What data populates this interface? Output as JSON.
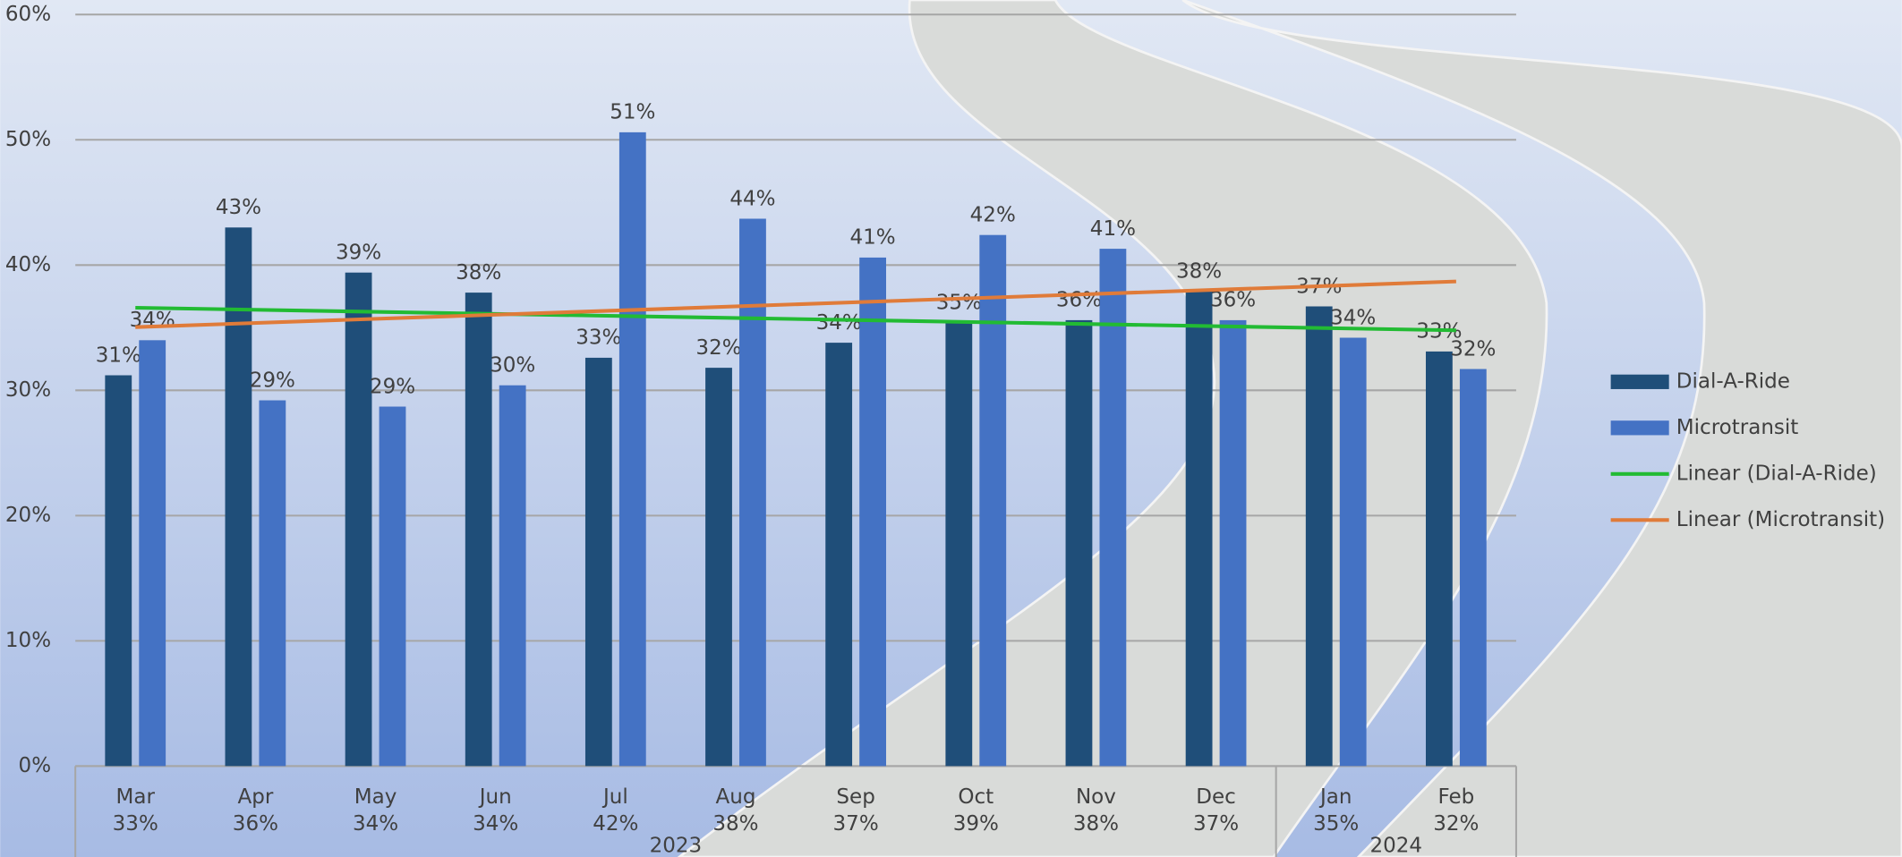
{
  "chart_data": {
    "type": "bar",
    "categories": [
      "Mar",
      "Apr",
      "May",
      "Jun",
      "Jul",
      "Aug",
      "Sep",
      "Oct",
      "Nov",
      "Dec",
      "Jan",
      "Feb"
    ],
    "category_sublabels": [
      "33%",
      "36%",
      "34%",
      "34%",
      "42%",
      "38%",
      "37%",
      "39%",
      "38%",
      "37%",
      "35%",
      "32%"
    ],
    "groups": [
      {
        "label": "2023",
        "span": 10
      },
      {
        "label": "2024",
        "span": 2
      }
    ],
    "series": [
      {
        "name": "Dial-A-Ride",
        "color": "#1f4e79",
        "values": [
          31.2,
          43.0,
          39.4,
          37.8,
          32.6,
          31.8,
          33.8,
          35.4,
          35.6,
          37.9,
          36.7,
          33.1
        ],
        "value_labels": [
          "31%",
          "43%",
          "39%",
          "38%",
          "33%",
          "32%",
          "34%",
          "35%",
          "36%",
          "38%",
          "37%",
          "33%"
        ],
        "trendline": {
          "name": "Linear (Dial-A-Ride)",
          "color": "#22bb33"
        }
      },
      {
        "name": "Microtransit",
        "color": "#4472c4",
        "values": [
          34.0,
          29.2,
          28.7,
          30.4,
          50.6,
          43.7,
          40.6,
          42.4,
          41.3,
          35.6,
          34.2,
          31.7
        ],
        "value_labels": [
          "34%",
          "29%",
          "29%",
          "30%",
          "51%",
          "44%",
          "41%",
          "42%",
          "41%",
          "36%",
          "34%",
          "32%"
        ],
        "trendline": {
          "name": "Linear (Microtransit)",
          "color": "#e07b39"
        }
      }
    ],
    "ylim": [
      0,
      60
    ],
    "yticks": [
      {
        "value": 0,
        "label": "0%"
      },
      {
        "value": 10,
        "label": "10%"
      },
      {
        "value": 20,
        "label": "20%"
      },
      {
        "value": 30,
        "label": "30%"
      },
      {
        "value": 40,
        "label": "40%"
      },
      {
        "value": 50,
        "label": "50%"
      },
      {
        "value": 60,
        "label": "60%"
      }
    ],
    "grid": true,
    "legend": "right"
  }
}
